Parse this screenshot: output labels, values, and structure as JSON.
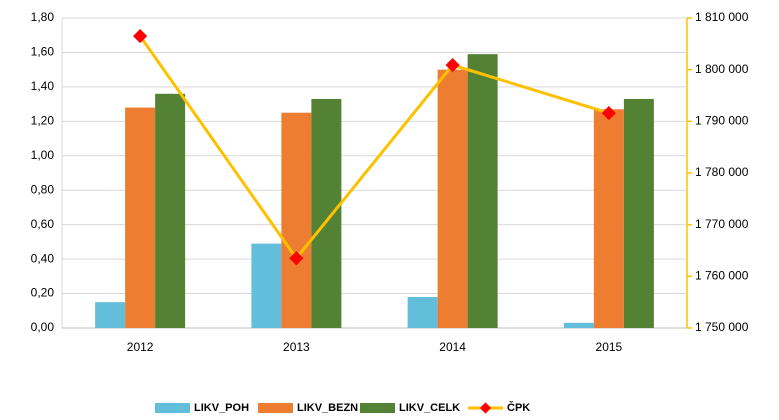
{
  "chart_data": {
    "type": "bar_line",
    "categories": [
      "2012",
      "2013",
      "2014",
      "2015"
    ],
    "series": [
      {
        "name": "LIKV_POH",
        "color": "#63bedb",
        "type": "bar",
        "axis": "y",
        "values": [
          0.15,
          0.49,
          0.18,
          0.03
        ]
      },
      {
        "name": "LIKV_BEZN",
        "color": "#ed7d31",
        "type": "bar",
        "axis": "y",
        "values": [
          1.28,
          1.25,
          1.5,
          1.27
        ]
      },
      {
        "name": "LIKV_CELK",
        "color": "#548235",
        "type": "bar",
        "axis": "y",
        "values": [
          1.36,
          1.33,
          1.59,
          1.33
        ]
      },
      {
        "name": "ČPK",
        "color": "#ffc000",
        "marker_color": "#ff0000",
        "type": "line",
        "axis": "y2",
        "values": [
          1806500,
          1763500,
          1800900,
          1791600
        ]
      }
    ],
    "ylim": [
      0,
      1.8
    ],
    "yticks": [
      {
        "value": 0,
        "label": "0,00"
      },
      {
        "value": 0.2,
        "label": "0,20"
      },
      {
        "value": 0.4,
        "label": "0,40"
      },
      {
        "value": 0.6,
        "label": "0,60"
      },
      {
        "value": 0.8,
        "label": "0,80"
      },
      {
        "value": 1.0,
        "label": "1,00"
      },
      {
        "value": 1.2,
        "label": "1,20"
      },
      {
        "value": 1.4,
        "label": "1,40"
      },
      {
        "value": 1.6,
        "label": "1,60"
      },
      {
        "value": 1.8,
        "label": "1,80"
      }
    ],
    "y2lim": [
      1750000,
      1810000
    ],
    "y2ticks": [
      {
        "value": 1750000,
        "label": "1 750 000"
      },
      {
        "value": 1760000,
        "label": "1 760 000"
      },
      {
        "value": 1770000,
        "label": "1 770 000"
      },
      {
        "value": 1780000,
        "label": "1 780 000"
      },
      {
        "value": 1790000,
        "label": "1 790 000"
      },
      {
        "value": 1800000,
        "label": "1 800 000"
      },
      {
        "value": 1810000,
        "label": "1 810 000"
      }
    ],
    "grid": true
  }
}
